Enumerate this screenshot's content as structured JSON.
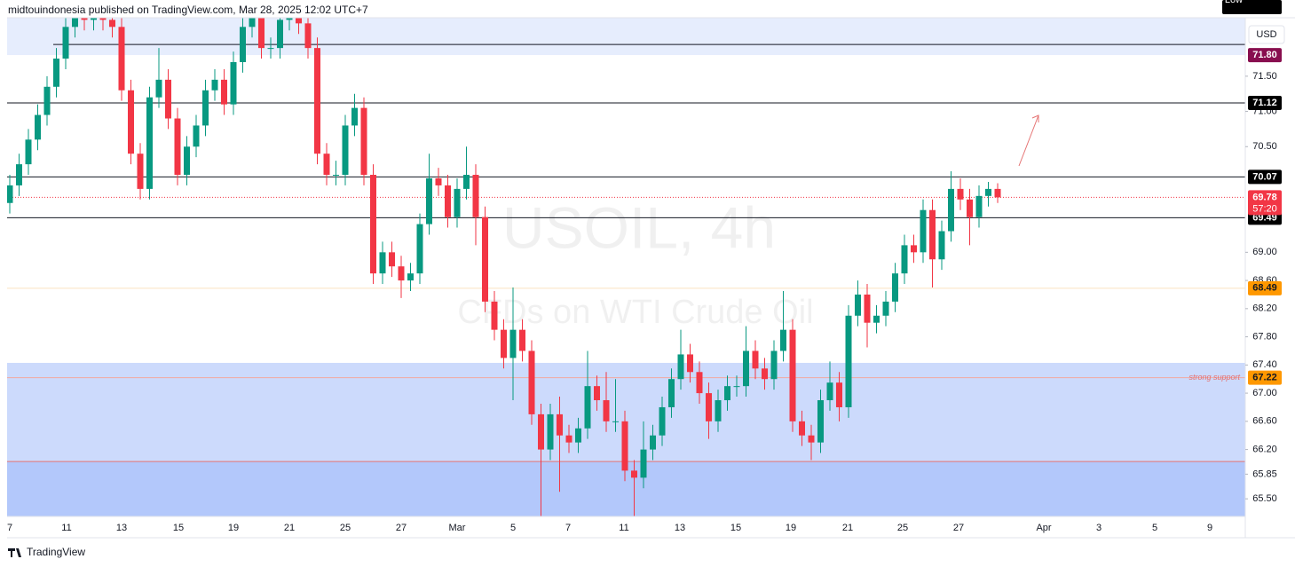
{
  "chart_data": {
    "type": "candlestick",
    "title": "midtouindonesia published on TradingView.com, Mar 28, 2025 12:02 UTC+7",
    "watermark": "USOIL, 4h",
    "watermark_sub": "CFDs on WTI Crude Oil",
    "currency": "USD",
    "footer": "TradingView",
    "annotation": "strong support",
    "low_label": "Low",
    "countdown": "57:20",
    "up_color": "#089981",
    "down_color": "#f23645",
    "ylim": [
      65.25,
      72.33
    ],
    "yticks": [
      {
        "value": 65.5,
        "label": "65.50"
      },
      {
        "value": 65.85,
        "label": "65.85"
      },
      {
        "value": 66.2,
        "label": "66.20"
      },
      {
        "value": 66.6,
        "label": "66.60"
      },
      {
        "value": 67,
        "label": "67.00"
      },
      {
        "value": 67.4,
        "label": "67.40"
      },
      {
        "value": 67.8,
        "label": "67.80"
      },
      {
        "value": 68.2,
        "label": "68.20"
      },
      {
        "value": 68.6,
        "label": "68.60"
      },
      {
        "value": 69,
        "label": "69.00"
      },
      {
        "value": 70.5,
        "label": "70.50"
      },
      {
        "value": 71,
        "label": "71.00"
      },
      {
        "value": 71.5,
        "label": "71.50"
      }
    ],
    "xlabels": [
      "7",
      "11",
      "13",
      "15",
      "19",
      "21",
      "25",
      "27",
      "Mar",
      "5",
      "7",
      "11",
      "13",
      "15",
      "19",
      "21",
      "25",
      "27",
      "Apr",
      "3",
      "5",
      "9"
    ],
    "zones": [
      {
        "from": 71.8,
        "to": 72.33,
        "color": "#e6edfd"
      },
      {
        "from": 66.03,
        "to": 67.43,
        "color": "#ccdafc"
      },
      {
        "from": 65.25,
        "to": 66.03,
        "color": "#b3c8fb"
      }
    ],
    "levels": [
      {
        "value": 71.95,
        "color": "#131722"
      },
      {
        "value": 71.12,
        "label": "71.12",
        "color": "#131722",
        "label_color": "#000000"
      },
      {
        "value": 70.07,
        "label": "70.07",
        "color": "#131722",
        "label_color": "#000000"
      },
      {
        "value": 69.49,
        "label": "69.49",
        "color": "#131722",
        "label_color": "#000000"
      },
      {
        "value": 68.49,
        "label": "68.49",
        "color": "#fbe3c0",
        "label_color": "#ff9800"
      },
      {
        "value": 67.22,
        "label": "67.22",
        "color": "#f2a7a0",
        "label_color": "#ff9800"
      },
      {
        "value": 66.03,
        "color": "#e57373"
      }
    ],
    "zone_label": {
      "value": 71.8,
      "label": "71.80",
      "color": "#880e4f"
    },
    "last_price": {
      "value": 69.78,
      "label": "69.78",
      "color": "#f23645"
    },
    "low": [
      69.55,
      69.8,
      70.1,
      70.45,
      70.8,
      71.2,
      71.6,
      72.05,
      72.15,
      72.15,
      72.15,
      72.05,
      71.15,
      70.25,
      69.75,
      69.75,
      71.05,
      70.75,
      69.95,
      69.95,
      70.35,
      70.65,
      71.15,
      70.95,
      70.95,
      71.55,
      72.05,
      71.75,
      71.75,
      71.75,
      72.15,
      72.1,
      71.75,
      70.25,
      69.95,
      69.95,
      69.95,
      70.65,
      69.95,
      68.55,
      68.55,
      68.65,
      68.35,
      68.45,
      68.55,
      69.25,
      69.8,
      69.35,
      69.35,
      69.75,
      69.1,
      68.15,
      67.75,
      67.35,
      66.9,
      67.45,
      66.55,
      65.25,
      66.05,
      65.6,
      66.15,
      66.15,
      66.35,
      66.75,
      66.45,
      66.45,
      65.75,
      65.25,
      65.65,
      66.05,
      66.25,
      66.65,
      67.05,
      67.15,
      66.85,
      66.35,
      66.45,
      66.75,
      66.95,
      66.95,
      67.2,
      67.05,
      67.05,
      67.45,
      66.45,
      66.25,
      66.05,
      66.15,
      66.75,
      66.6,
      66.65,
      67.95,
      67.65,
      67.85,
      67.95,
      68.15,
      68.55,
      68.85,
      68.85,
      68.5,
      68.75,
      69.15,
      69.6,
      69.1,
      69.35,
      69.65,
      69.7
    ],
    "open": [
      69.7,
      69.95,
      70.25,
      70.6,
      70.95,
      71.35,
      71.75,
      72.2,
      72.35,
      72.3,
      72.35,
      72.3,
      72.2,
      71.3,
      70.4,
      69.9,
      71.2,
      71.45,
      70.9,
      70.1,
      70.5,
      70.8,
      71.3,
      71.45,
      71.1,
      71.7,
      72.2,
      72.35,
      71.9,
      71.9,
      72.3,
      72.35,
      72.25,
      71.9,
      70.4,
      70.1,
      70.1,
      70.8,
      71.05,
      70.1,
      68.7,
      69.0,
      68.8,
      68.6,
      68.7,
      69.4,
      70.05,
      69.95,
      69.5,
      69.9,
      70.1,
      69.5,
      68.3,
      67.9,
      67.5,
      67.9,
      67.6,
      66.7,
      66.2,
      66.7,
      66.4,
      66.3,
      66.5,
      67.1,
      66.9,
      66.6,
      66.6,
      65.9,
      65.8,
      66.2,
      66.4,
      66.8,
      67.2,
      67.55,
      67.3,
      67.0,
      66.6,
      66.9,
      67.1,
      67.1,
      67.6,
      67.35,
      67.2,
      67.6,
      67.9,
      66.6,
      66.4,
      66.3,
      66.9,
      67.15,
      66.8,
      68.1,
      68.4,
      68.0,
      68.1,
      68.3,
      68.7,
      69.1,
      69.0,
      69.6,
      68.9,
      69.3,
      69.9,
      69.75,
      69.5,
      69.8,
      69.9
    ],
    "high": [
      70.1,
      70.4,
      70.75,
      71.1,
      71.5,
      71.9,
      72.35,
      72.5,
      72.5,
      72.5,
      72.5,
      72.45,
      72.35,
      71.45,
      70.55,
      71.35,
      71.9,
      71.6,
      71.05,
      70.65,
      70.95,
      71.45,
      71.6,
      71.6,
      71.85,
      72.35,
      72.5,
      72.5,
      72.05,
      72.45,
      72.5,
      72.5,
      72.4,
      72.05,
      70.55,
      70.3,
      70.95,
      71.25,
      71.2,
      70.25,
      69.15,
      69.15,
      68.95,
      68.85,
      69.55,
      70.4,
      70.2,
      70.1,
      70.05,
      70.5,
      70.25,
      69.65,
      68.45,
      68.05,
      68.5,
      68.05,
      67.75,
      66.85,
      66.85,
      66.95,
      66.55,
      66.65,
      67.6,
      67.25,
      67.3,
      67.2,
      66.75,
      66.05,
      66.6,
      66.55,
      66.95,
      67.35,
      67.9,
      67.7,
      67.45,
      67.15,
      67.05,
      67.25,
      67.25,
      67.95,
      67.75,
      67.5,
      67.75,
      68.45,
      68.05,
      66.75,
      66.55,
      67.05,
      67.45,
      67.3,
      68.25,
      68.6,
      68.55,
      68.25,
      68.45,
      68.85,
      69.25,
      69.25,
      69.75,
      69.75,
      69.45,
      70.15,
      70.05,
      69.9,
      69.95,
      70.0,
      69.98
    ],
    "close": [
      69.95,
      70.25,
      70.6,
      70.95,
      71.35,
      71.75,
      72.2,
      72.35,
      72.3,
      72.35,
      72.3,
      72.2,
      71.3,
      70.4,
      69.9,
      71.2,
      71.45,
      70.9,
      70.1,
      70.5,
      70.8,
      71.3,
      71.45,
      71.1,
      71.7,
      72.2,
      72.35,
      71.9,
      71.9,
      72.3,
      72.35,
      72.25,
      71.9,
      70.4,
      70.1,
      70.1,
      70.8,
      71.05,
      70.1,
      68.7,
      69.0,
      68.8,
      68.6,
      68.7,
      69.4,
      70.05,
      69.95,
      69.5,
      69.9,
      70.1,
      69.5,
      68.3,
      67.9,
      67.5,
      67.9,
      67.6,
      66.7,
      66.2,
      66.7,
      66.4,
      66.3,
      66.5,
      67.1,
      66.9,
      66.6,
      66.6,
      65.9,
      65.8,
      66.2,
      66.4,
      66.8,
      67.2,
      67.55,
      67.3,
      67.0,
      66.6,
      66.9,
      67.1,
      67.1,
      67.6,
      67.35,
      67.2,
      67.6,
      67.9,
      66.6,
      66.4,
      66.3,
      66.9,
      67.15,
      66.8,
      68.1,
      68.4,
      68.0,
      68.1,
      68.3,
      68.7,
      69.1,
      69.0,
      69.6,
      68.9,
      69.3,
      69.9,
      69.75,
      69.5,
      69.8,
      69.9,
      69.78
    ]
  }
}
